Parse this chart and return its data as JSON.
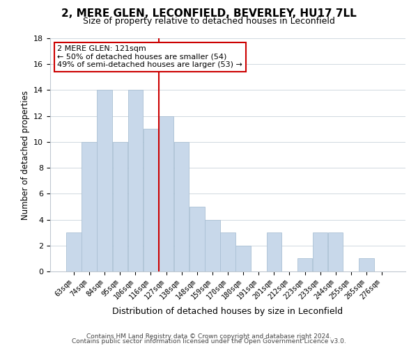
{
  "title": "2, MERE GLEN, LECONFIELD, BEVERLEY, HU17 7LL",
  "subtitle": "Size of property relative to detached houses in Leconfield",
  "xlabel": "Distribution of detached houses by size in Leconfield",
  "ylabel": "Number of detached properties",
  "bar_color": "#c8d8ea",
  "bar_edge_color": "#aac0d4",
  "categories": [
    "63sqm",
    "74sqm",
    "84sqm",
    "95sqm",
    "106sqm",
    "116sqm",
    "127sqm",
    "138sqm",
    "148sqm",
    "159sqm",
    "170sqm",
    "180sqm",
    "191sqm",
    "201sqm",
    "212sqm",
    "223sqm",
    "233sqm",
    "244sqm",
    "255sqm",
    "265sqm",
    "276sqm"
  ],
  "values": [
    3,
    10,
    14,
    10,
    14,
    11,
    12,
    10,
    5,
    4,
    3,
    2,
    0,
    3,
    0,
    1,
    3,
    3,
    0,
    1,
    0
  ],
  "ylim": [
    0,
    18
  ],
  "yticks": [
    0,
    2,
    4,
    6,
    8,
    10,
    12,
    14,
    16,
    18
  ],
  "vline_x": 5.5,
  "vline_color": "#cc0000",
  "annotation_title": "2 MERE GLEN: 121sqm",
  "annotation_line1": "← 50% of detached houses are smaller (54)",
  "annotation_line2": "49% of semi-detached houses are larger (53) →",
  "footer1": "Contains HM Land Registry data © Crown copyright and database right 2024.",
  "footer2": "Contains public sector information licensed under the Open Government Licence v3.0.",
  "background_color": "#ffffff",
  "grid_color": "#d0d8e0"
}
